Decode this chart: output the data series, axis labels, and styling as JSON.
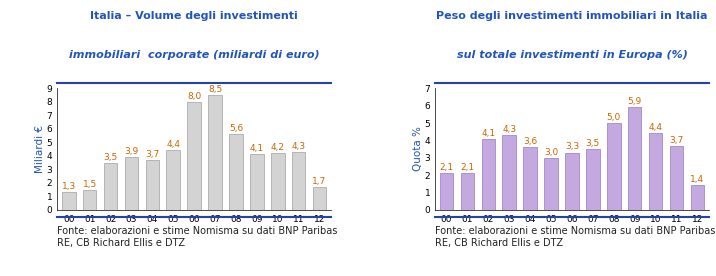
{
  "left_title_line1": "Italia – Volume degli investimenti",
  "left_title_line2_pre": "immobiliari ",
  "left_title_line2_italic": "corporate (miliardi di euro)",
  "left_ylabel": "Miliardi €",
  "left_categories": [
    "00",
    "01",
    "02",
    "03",
    "04",
    "05",
    "06",
    "07",
    "08",
    "09",
    "10",
    "11",
    "12"
  ],
  "left_values": [
    1.3,
    1.5,
    3.5,
    3.9,
    3.7,
    4.4,
    8.0,
    8.5,
    5.6,
    4.1,
    4.2,
    4.3,
    1.7
  ],
  "left_ylim": [
    0,
    9
  ],
  "left_yticks": [
    0,
    1,
    2,
    3,
    4,
    5,
    6,
    7,
    8,
    9
  ],
  "left_bar_color": "#d3d3d3",
  "left_bar_edge_color": "#a0a0a0",
  "left_source": "Fonte: elaborazioni e stime Nomisma su dati BNP Paribas\nRE, CB Richard Ellis e DTZ",
  "right_title_line1": "Peso degli investimenti immobiliari in Italia",
  "right_title_line2_pre": "sul totale investimenti in Europa ",
  "right_title_line2_italic": "(%)",
  "right_ylabel": "Quota %",
  "right_categories": [
    "00",
    "01",
    "02",
    "03",
    "04",
    "05",
    "06",
    "07",
    "08",
    "09",
    "10",
    "11",
    "12"
  ],
  "right_values": [
    2.1,
    2.1,
    4.1,
    4.3,
    3.6,
    3.0,
    3.3,
    3.5,
    5.0,
    5.9,
    4.4,
    3.7,
    1.4
  ],
  "right_ylim": [
    0,
    7
  ],
  "right_yticks": [
    0,
    1,
    2,
    3,
    4,
    5,
    6,
    7
  ],
  "right_bar_color": "#c4a8e0",
  "right_bar_edge_color": "#9878c0",
  "right_source": "Fonte: elaborazioni e stime Nomisma su dati BNP Paribas\nRE, CB Richard Ellis e DTZ",
  "title_color": "#2255bb",
  "label_color": "#cc6600",
  "axis_label_color": "#2255bb",
  "source_color": "#222222",
  "title_fontsize": 8.0,
  "bar_label_fontsize": 6.5,
  "axis_tick_fontsize": 6.5,
  "ylabel_fontsize": 7.5,
  "source_fontsize": 7.0,
  "separator_color": "#2244aa"
}
